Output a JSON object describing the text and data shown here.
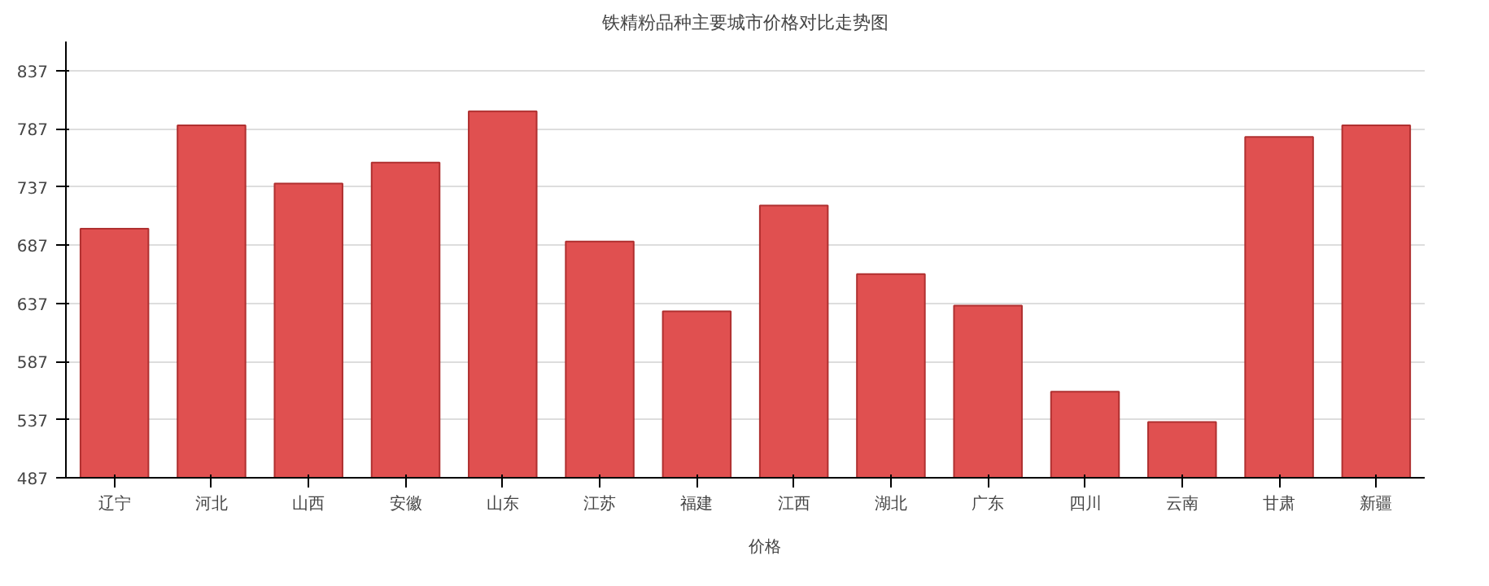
{
  "chart_data": {
    "type": "bar",
    "title": "铁精粉品种主要城市价格对比走势图",
    "categories": [
      "辽宁",
      "河北",
      "山西",
      "安徽",
      "山东",
      "江苏",
      "福建",
      "江西",
      "湖北",
      "广东",
      "四川",
      "云南",
      "甘肃",
      "新疆"
    ],
    "series": [
      {
        "name": "价格",
        "color": "#e05050",
        "values": [
          701,
          790,
          740,
          758,
          802,
          690,
          630,
          721,
          662,
          635,
          561,
          535,
          780,
          790
        ]
      }
    ],
    "ylim": [
      487,
      862
    ],
    "yticks": [
      487,
      537,
      587,
      637,
      687,
      737,
      787,
      837
    ],
    "grid": "y",
    "legend": "bottom"
  }
}
